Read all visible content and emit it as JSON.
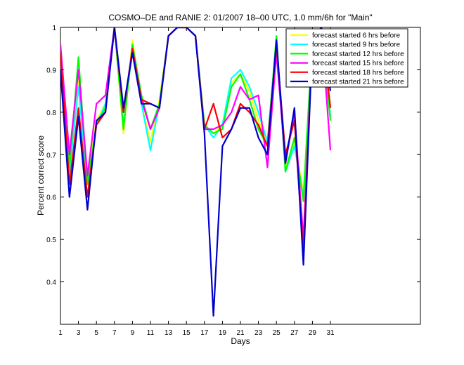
{
  "chart_data": {
    "type": "line",
    "title": "COSMO–DE and RANIE 2: 01/2007 18–00 UTC, 1.0 mm/6h for \"Main\"",
    "xlabel": "Days",
    "ylabel": "Percent correct score",
    "xlim": [
      1,
      41
    ],
    "ylim": [
      0.3,
      1.0
    ],
    "xticks": [
      1,
      3,
      5,
      7,
      9,
      11,
      13,
      15,
      17,
      19,
      21,
      23,
      25,
      27,
      29,
      31
    ],
    "yticks": [
      0.4,
      0.5,
      0.6,
      0.7,
      0.8,
      0.9,
      1
    ],
    "ytick_labels": [
      "0.4",
      "0.5",
      "0.6",
      "0.7",
      "0.8",
      "0.9",
      "1"
    ],
    "legend_position": "top-right",
    "x": [
      1,
      2,
      3,
      4,
      5,
      6,
      7,
      8,
      9,
      10,
      11,
      12,
      13,
      14,
      15,
      16,
      17,
      18,
      19,
      20,
      21,
      22,
      23,
      24,
      25,
      26,
      27,
      28,
      29,
      30,
      31
    ],
    "series": [
      {
        "name": "forecast started 6 hrs before",
        "color": "#ffff00",
        "values": [
          0.93,
          0.68,
          0.88,
          0.64,
          0.78,
          0.82,
          1.0,
          0.75,
          0.97,
          0.82,
          0.73,
          0.83,
          0.98,
          1.0,
          1.0,
          0.98,
          0.77,
          0.75,
          0.77,
          0.87,
          0.89,
          0.85,
          0.78,
          0.73,
          0.96,
          0.67,
          0.73,
          0.61,
          0.97,
          1.0,
          0.78
        ]
      },
      {
        "name": "forecast started 9 hrs before",
        "color": "#00ffff",
        "values": [
          0.92,
          0.66,
          0.86,
          0.63,
          0.77,
          0.82,
          1.0,
          0.77,
          0.95,
          0.82,
          0.71,
          0.82,
          0.98,
          1.0,
          1.0,
          0.98,
          0.77,
          0.74,
          0.77,
          0.88,
          0.9,
          0.86,
          0.8,
          0.73,
          0.97,
          0.66,
          0.72,
          0.6,
          0.97,
          1.0,
          0.79
        ]
      },
      {
        "name": "forecast started 12 hrs before",
        "color": "#00ff00",
        "values": [
          0.92,
          0.67,
          0.93,
          0.63,
          0.77,
          0.81,
          1.0,
          0.76,
          0.96,
          0.84,
          0.76,
          0.82,
          0.98,
          1.0,
          1.0,
          0.98,
          0.77,
          0.75,
          0.76,
          0.86,
          0.89,
          0.83,
          0.76,
          0.72,
          0.98,
          0.66,
          0.74,
          0.59,
          0.97,
          1.0,
          0.78
        ]
      },
      {
        "name": "forecast started 15 hrs before",
        "color": "#ff00ff",
        "values": [
          0.96,
          0.7,
          0.9,
          0.65,
          0.82,
          0.84,
          1.0,
          0.8,
          0.95,
          0.83,
          0.76,
          0.81,
          0.98,
          1.0,
          1.0,
          0.98,
          0.76,
          0.76,
          0.77,
          0.8,
          0.86,
          0.83,
          0.84,
          0.67,
          0.94,
          0.68,
          0.8,
          0.5,
          0.97,
          1.0,
          0.71
        ]
      },
      {
        "name": "forecast started 18 hrs before",
        "color": "#ff0000",
        "values": [
          0.94,
          0.63,
          0.81,
          0.6,
          0.77,
          0.8,
          1.0,
          0.8,
          0.95,
          0.83,
          0.82,
          0.81,
          0.98,
          1.0,
          1.0,
          0.98,
          0.76,
          0.82,
          0.74,
          0.76,
          0.82,
          0.8,
          0.77,
          0.72,
          0.96,
          0.7,
          0.78,
          0.47,
          0.97,
          1.0,
          0.81
        ]
      },
      {
        "name": "forecast started 21 hrs before",
        "color": "#0000cc",
        "values": [
          0.9,
          0.6,
          0.79,
          0.57,
          0.78,
          0.8,
          1.0,
          0.81,
          0.94,
          0.82,
          0.82,
          0.81,
          0.98,
          1.0,
          1.0,
          0.98,
          0.75,
          0.32,
          0.72,
          0.76,
          0.81,
          0.81,
          0.74,
          0.7,
          0.97,
          0.68,
          0.81,
          0.44,
          0.97,
          1.0,
          0.85
        ]
      }
    ]
  }
}
